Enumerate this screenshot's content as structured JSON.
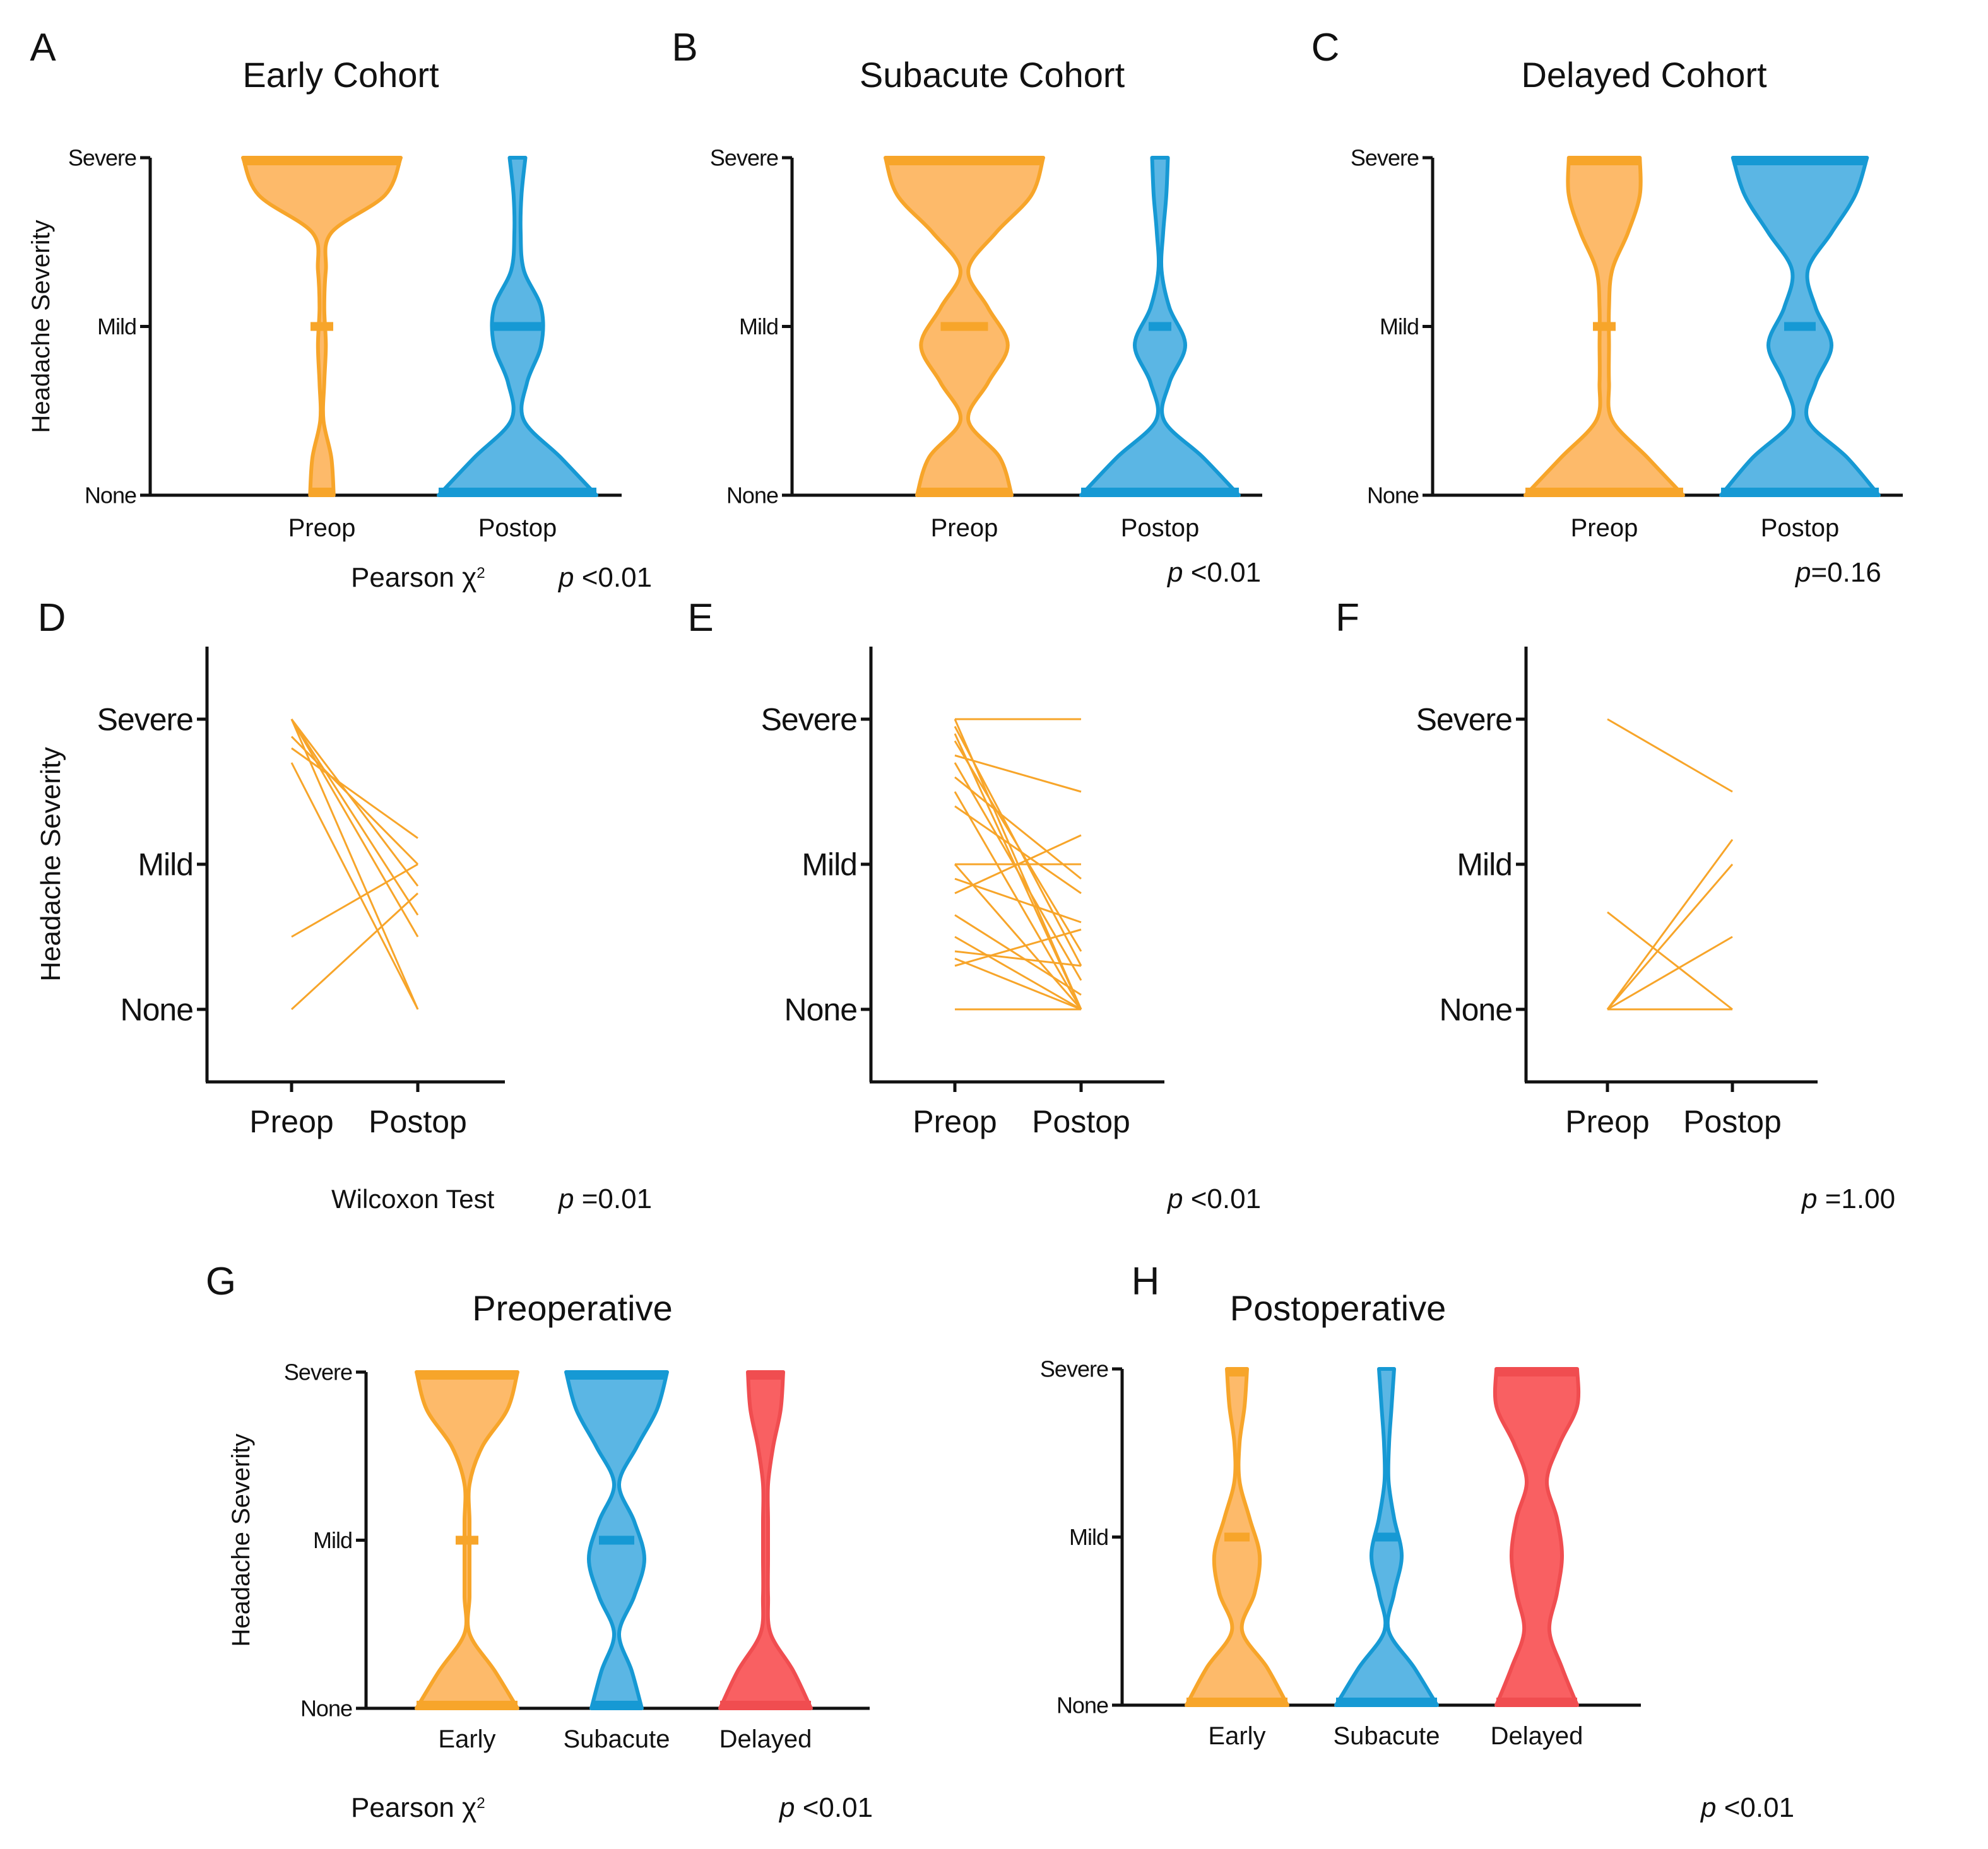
{
  "colors": {
    "orange_fill": "#FDBA6A",
    "orange_line": "#F7A52A",
    "blue_fill": "#5BB6E4",
    "blue_line": "#1699D4",
    "red_fill": "#F96062",
    "red_line": "#F04D50",
    "axis": "#111111"
  },
  "stats": {
    "pearson_label": "Pearson χ",
    "pearson_sup": "2",
    "wilcoxon_label": "Wilcoxon Test",
    "p_italic": "p"
  },
  "chart_data": [
    {
      "id": "A",
      "panel_label": "A",
      "type": "violin",
      "title": "Early Cohort",
      "ylabel": "Headache Severity",
      "xlabel": "",
      "levels": [
        "None",
        "Mild",
        "Severe"
      ],
      "groups": [
        {
          "name": "Preop",
          "color": "orange",
          "density": [
            0.15,
            0.12,
            0.02,
            0.03,
            0.05,
            0.03,
            0.05,
            0.12,
            0.8,
            1.0
          ],
          "median": "Mild"
        },
        {
          "name": "Postop",
          "color": "blue",
          "density": [
            1.0,
            0.55,
            0.08,
            0.12,
            0.3,
            0.3,
            0.08,
            0.04,
            0.05,
            0.1
          ],
          "median": "Mild"
        }
      ],
      "test": "Pearson χ²",
      "p_text": " <0.01"
    },
    {
      "id": "B",
      "panel_label": "B",
      "type": "violin",
      "title": "Subacute Cohort",
      "ylabel": "",
      "xlabel": "",
      "levels": [
        "None",
        "Mild",
        "Severe"
      ],
      "groups": [
        {
          "name": "Preop",
          "color": "orange",
          "density": [
            0.6,
            0.45,
            0.05,
            0.3,
            0.55,
            0.3,
            0.05,
            0.4,
            0.85,
            1.0
          ],
          "median": "Mild"
        },
        {
          "name": "Postop",
          "color": "blue",
          "density": [
            1.0,
            0.55,
            0.05,
            0.12,
            0.32,
            0.12,
            0.02,
            0.04,
            0.08,
            0.1
          ],
          "median": "Mild"
        }
      ],
      "test": "",
      "p_text": " <0.01"
    },
    {
      "id": "C",
      "panel_label": "C",
      "type": "violin",
      "title": "Delayed Cohort",
      "ylabel": "",
      "xlabel": "",
      "levels": [
        "None",
        "Mild",
        "Severe"
      ],
      "groups": [
        {
          "name": "Preop",
          "color": "orange",
          "density": [
            1.0,
            0.55,
            0.1,
            0.06,
            0.06,
            0.06,
            0.1,
            0.3,
            0.45,
            0.45
          ],
          "median": "Mild"
        },
        {
          "name": "Postop",
          "color": "blue",
          "density": [
            1.0,
            0.6,
            0.1,
            0.2,
            0.4,
            0.2,
            0.1,
            0.4,
            0.7,
            0.85
          ],
          "median": "Mild"
        }
      ],
      "test": "",
      "p_text": "=0.16"
    },
    {
      "id": "D",
      "panel_label": "D",
      "type": "paired-line",
      "title": "",
      "ylabel": "Headache Severity",
      "categories": [
        "Preop",
        "Postop"
      ],
      "levels": [
        "None",
        "Mild",
        "Severe"
      ],
      "ylim": [
        -0.5,
        2.5
      ],
      "pairs": [
        [
          2,
          0.0
        ],
        [
          2,
          0.5
        ],
        [
          2,
          0.65
        ],
        [
          2,
          0.85
        ],
        [
          1.88,
          1.0
        ],
        [
          1.8,
          1.18
        ],
        [
          1.7,
          0.0
        ],
        [
          0.5,
          1.0
        ],
        [
          0.0,
          0.8
        ]
      ],
      "test": "Wilcoxon Test",
      "p_text": " =0.01"
    },
    {
      "id": "E",
      "panel_label": "E",
      "type": "paired-line",
      "title": "",
      "ylabel": "",
      "categories": [
        "Preop",
        "Postop"
      ],
      "levels": [
        "None",
        "Mild",
        "Severe"
      ],
      "ylim": [
        -0.5,
        2.5
      ],
      "pairs": [
        [
          2,
          0.0
        ],
        [
          2,
          2.0
        ],
        [
          1.95,
          0.3
        ],
        [
          1.9,
          0.0
        ],
        [
          1.85,
          0.4
        ],
        [
          1.75,
          1.5
        ],
        [
          1.7,
          0.2
        ],
        [
          1.6,
          0.9
        ],
        [
          1.5,
          0.0
        ],
        [
          1.4,
          0.8
        ],
        [
          1.0,
          0.0
        ],
        [
          1.0,
          1.0
        ],
        [
          0.9,
          0.6
        ],
        [
          0.8,
          1.2
        ],
        [
          0.65,
          0.1
        ],
        [
          0.5,
          0.0
        ],
        [
          0.4,
          0.3
        ],
        [
          0.35,
          0.0
        ],
        [
          0.3,
          0.55
        ],
        [
          0.0,
          0.0
        ]
      ],
      "test": "",
      "p_text": " <0.01"
    },
    {
      "id": "F",
      "panel_label": "F",
      "type": "paired-line",
      "title": "",
      "ylabel": "",
      "categories": [
        "Preop",
        "Postop"
      ],
      "levels": [
        "None",
        "Mild",
        "Severe"
      ],
      "ylim": [
        -0.5,
        2.5
      ],
      "pairs": [
        [
          2,
          1.5
        ],
        [
          0.67,
          0.0
        ],
        [
          0.0,
          1.17
        ],
        [
          0.0,
          1.0
        ],
        [
          0.0,
          0.5
        ],
        [
          0.0,
          0.0
        ]
      ],
      "test": "",
      "p_text": " =1.00"
    },
    {
      "id": "G",
      "panel_label": "G",
      "type": "violin",
      "title": "Preoperative",
      "ylabel": "Headache Severity",
      "xlabel": "",
      "levels": [
        "None",
        "Mild",
        "Severe"
      ],
      "groups": [
        {
          "name": "Early",
          "color": "orange",
          "density": [
            1.0,
            0.55,
            0.05,
            0.05,
            0.05,
            0.05,
            0.05,
            0.3,
            0.8,
            1.0
          ],
          "median": "Mild"
        },
        {
          "name": "Subacute",
          "color": "blue",
          "density": [
            0.5,
            0.3,
            0.05,
            0.35,
            0.55,
            0.35,
            0.05,
            0.4,
            0.8,
            1.0
          ],
          "median": "Mild"
        },
        {
          "name": "Delayed",
          "color": "red",
          "density": [
            0.9,
            0.55,
            0.1,
            0.05,
            0.05,
            0.05,
            0.05,
            0.15,
            0.3,
            0.35
          ],
          "median": ""
        }
      ],
      "test": "Pearson χ²",
      "p_text": " <0.01"
    },
    {
      "id": "H",
      "panel_label": "H",
      "type": "violin",
      "title": "Postoperative",
      "ylabel": "",
      "xlabel": "",
      "levels": [
        "None",
        "Mild",
        "Severe"
      ],
      "groups": [
        {
          "name": "Early",
          "color": "orange",
          "density": [
            1.0,
            0.6,
            0.1,
            0.35,
            0.45,
            0.25,
            0.05,
            0.05,
            0.15,
            0.2
          ],
          "median": "Mild"
        },
        {
          "name": "Subacute",
          "color": "blue",
          "density": [
            1.0,
            0.55,
            0.04,
            0.15,
            0.3,
            0.15,
            0.04,
            0.05,
            0.1,
            0.15
          ],
          "median": "Mild"
        },
        {
          "name": "Delayed",
          "color": "red",
          "density": [
            0.8,
            0.5,
            0.25,
            0.4,
            0.5,
            0.4,
            0.2,
            0.45,
            0.8,
            0.8
          ],
          "median": ""
        }
      ],
      "test": "",
      "p_text": " <0.01"
    }
  ]
}
